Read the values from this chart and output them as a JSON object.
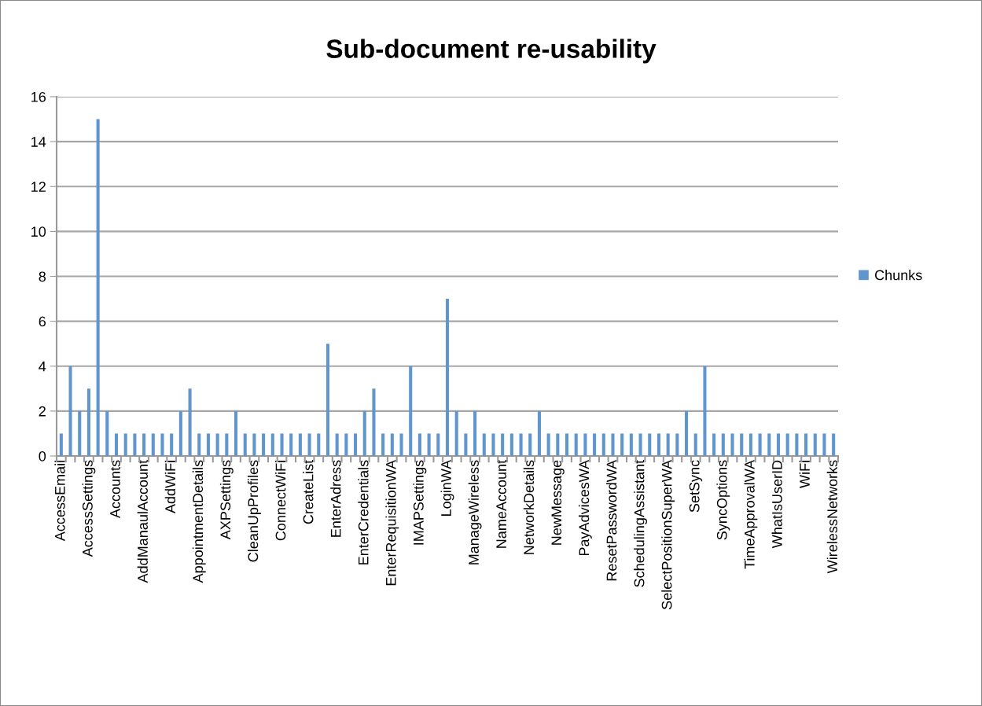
{
  "chart_data": {
    "type": "bar",
    "title": "Sub-document re-usability",
    "categories": [
      "AccessEmail",
      null,
      null,
      "AccessSettings",
      null,
      null,
      "Accounts",
      null,
      null,
      "AddManaulAccount",
      null,
      null,
      "AddWiFi",
      null,
      null,
      "AppointmentDetails",
      null,
      null,
      "AXPSettings",
      null,
      null,
      "CleanUpProfiles",
      null,
      null,
      "ConnectWiFi",
      null,
      null,
      "CreateList",
      null,
      null,
      "EnterAdress",
      null,
      null,
      "EnterCredentials",
      null,
      null,
      "EnterRequisitionWA",
      null,
      null,
      "IMAPSettings",
      null,
      null,
      "LoginWA",
      null,
      null,
      "ManageWireless",
      null,
      null,
      "NameAccount",
      null,
      null,
      "NetworkDetails",
      null,
      null,
      "NewMessage",
      null,
      null,
      "PayAdvicesWA",
      null,
      null,
      "ResetPasswordWA",
      null,
      null,
      "SchedulingAssistant",
      null,
      null,
      "SelectPositionSuperWA",
      null,
      null,
      "SetSync",
      null,
      null,
      "SyncOptions",
      null,
      null,
      "TimeApprovalWA",
      null,
      null,
      "WhatIsUserID",
      null,
      null,
      "WiFi",
      null,
      null,
      "WirelessNetworks"
    ],
    "series": [
      {
        "name": "Chunks",
        "color": "#6096cd",
        "values": [
          1,
          4,
          2,
          3,
          15,
          2,
          1,
          1,
          1,
          1,
          1,
          1,
          1,
          2,
          3,
          1,
          1,
          1,
          1,
          2,
          1,
          1,
          1,
          1,
          1,
          1,
          1,
          1,
          1,
          5,
          1,
          1,
          1,
          2,
          3,
          1,
          1,
          1,
          4,
          1,
          1,
          1,
          7,
          2,
          1,
          2,
          1,
          1,
          1,
          1,
          1,
          1,
          2,
          1,
          1,
          1,
          1,
          1,
          1,
          1,
          1,
          1,
          1,
          1,
          1,
          1,
          1,
          1,
          2,
          1,
          4,
          1,
          1,
          1,
          1,
          1,
          1,
          1,
          1,
          1,
          1,
          1,
          1,
          1,
          1
        ]
      }
    ],
    "ylim": [
      0,
      16
    ],
    "yticks": [
      0,
      2,
      4,
      6,
      8,
      10,
      12,
      14,
      16
    ],
    "grid": "y",
    "legend": "right"
  }
}
